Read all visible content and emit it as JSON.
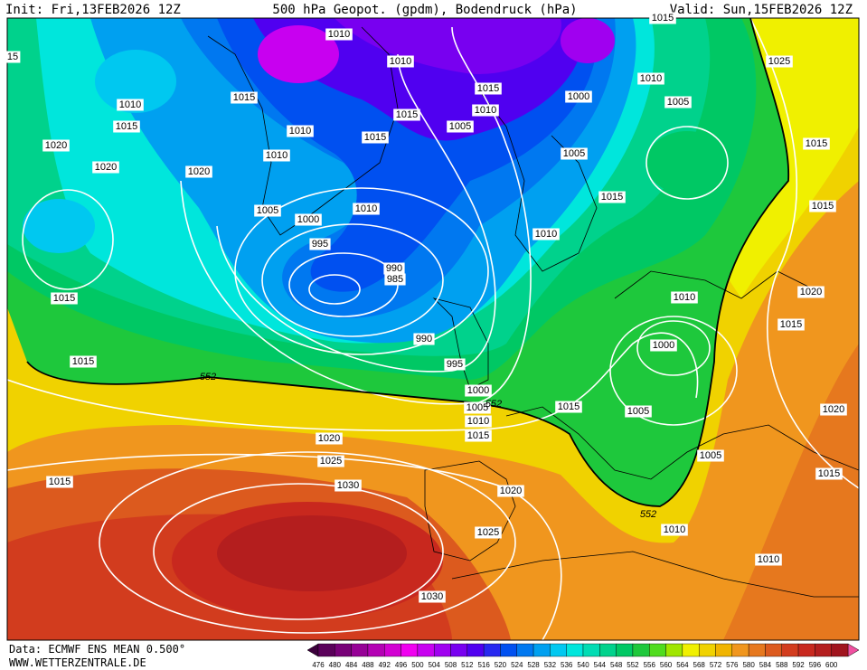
{
  "header": {
    "init": "Init: Fri,13FEB2026 12Z",
    "title": "500 hPa Geopot. (gpdm), Bodendruck (hPa)",
    "valid": "Valid: Sun,15FEB2026 12Z"
  },
  "isobar_labels": [
    "1010",
    "1010",
    "1015",
    "1010",
    "1015",
    "1015",
    "1010",
    "1000",
    "1010",
    "1005",
    "1025",
    "1015",
    "1015",
    "1010",
    "1005",
    "1020",
    "1020",
    "1020",
    "1010",
    "1005",
    "1015",
    "1015",
    "1015",
    "1005",
    "1000",
    "1010",
    "1010",
    "995",
    "990",
    "985",
    "1015",
    "1020",
    "1010",
    "1015",
    "1000",
    "990",
    "995",
    "1015",
    "1000",
    "1005",
    "1010",
    "1015",
    "1005",
    "1020",
    "1015",
    "1020",
    "1025",
    "1005",
    "1015",
    "1030",
    "1015",
    "1020",
    "1010",
    "1025",
    "1010",
    "1030",
    "15",
    "1015"
  ],
  "contour_labels": [
    "552",
    "552",
    "552"
  ],
  "footer": {
    "data": "Data: ECMWF ENS MEAN 0.500°",
    "site": "WWW.WETTERZENTRALE.DE"
  },
  "colorbar": {
    "labels": [
      476,
      480,
      484,
      488,
      492,
      496,
      500,
      504,
      508,
      512,
      516,
      520,
      524,
      528,
      532,
      536,
      540,
      544,
      548,
      552,
      556,
      560,
      564,
      568,
      572,
      576,
      580,
      584,
      588,
      592,
      596,
      600
    ]
  }
}
